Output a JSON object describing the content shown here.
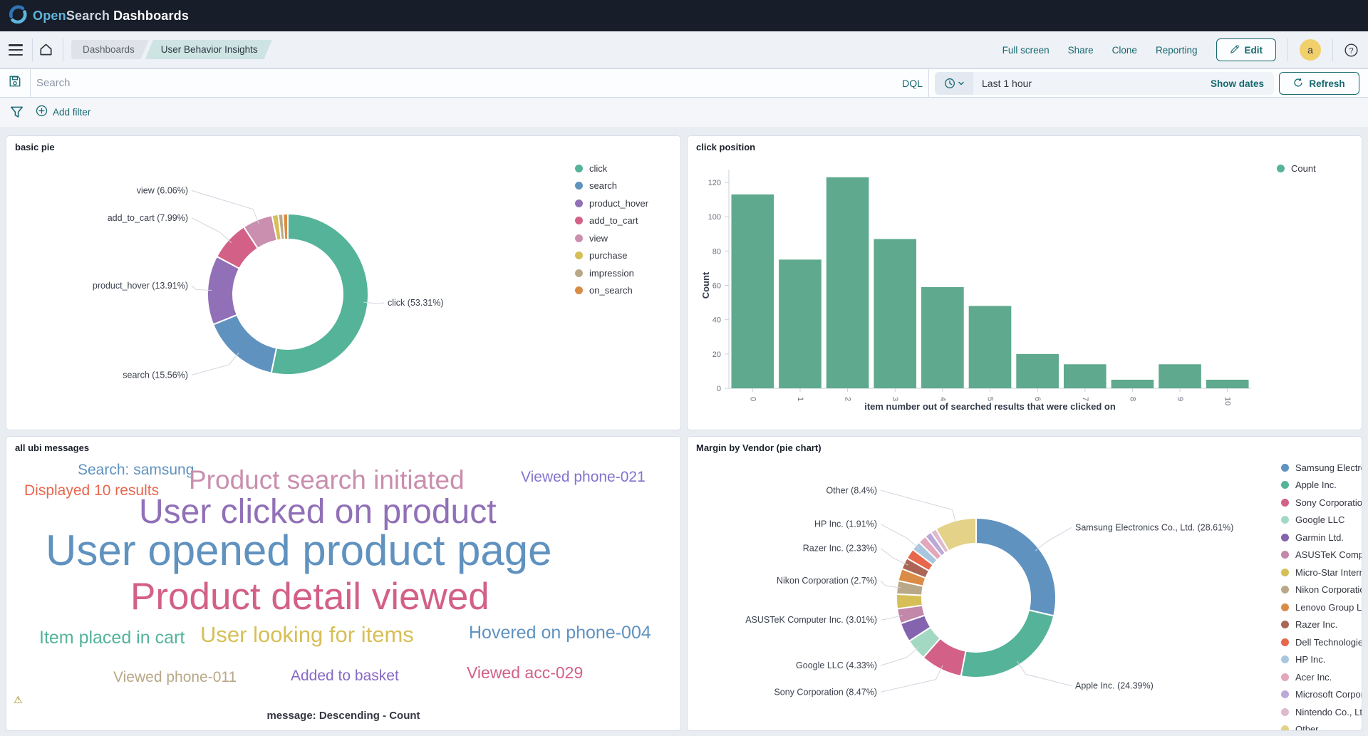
{
  "header": {
    "logo": {
      "open": "Open",
      "search": "Search",
      "dashboards": "Dashboards"
    }
  },
  "nav": {
    "breadcrumbs": [
      "Dashboards",
      "User Behavior Insights"
    ],
    "actions": [
      "Full screen",
      "Share",
      "Clone",
      "Reporting"
    ],
    "edit_label": "Edit",
    "avatar_initial": "a"
  },
  "search_bar": {
    "placeholder": "Search",
    "dql_label": "DQL",
    "time_range": "Last 1 hour",
    "show_dates_label": "Show dates",
    "refresh_label": "Refresh"
  },
  "filter_bar": {
    "add_filter_label": "Add filter"
  },
  "panels": {
    "pie1_title": "basic pie",
    "bar_title": "click position",
    "cloud_title": "all ubi messages",
    "pie2_title": "Margin by Vendor (pie chart)"
  },
  "colors": {
    "accent": "#166870",
    "header_bg": "#171d29",
    "bar_fill": "#5fa98e",
    "page_bg": "#e9edf2"
  },
  "icons": {
    "logo-icon": "opensearch-swirl",
    "menu-icon": "hamburger",
    "home-icon": "house",
    "save-icon": "floppy-disk",
    "filter-icon": "funnel",
    "add-filter-icon": "plus-circle",
    "time-quick-select-icon": "clock-with-caret",
    "refresh-icon": "circular-arrow",
    "edit-icon": "pencil",
    "help-icon": "question-circle",
    "warning-icon": "triangle-exclamation"
  },
  "chart_data": [
    {
      "id": "basic-pie",
      "type": "pie",
      "donut": true,
      "legend_position": "right",
      "slices": [
        {
          "label": "click",
          "value": 53.31,
          "color": "#54B399",
          "callout": "click (53.31%)"
        },
        {
          "label": "search",
          "value": 15.56,
          "color": "#6092C0",
          "callout": "search (15.56%)"
        },
        {
          "label": "product_hover",
          "value": 13.91,
          "color": "#9170B8",
          "callout": "product_hover (13.91%)"
        },
        {
          "label": "add_to_cart",
          "value": 7.99,
          "color": "#D36086",
          "callout": "add_to_cart (7.99%)"
        },
        {
          "label": "view",
          "value": 6.06,
          "color": "#CA8EAE",
          "callout": "view (6.06%)"
        },
        {
          "label": "purchase",
          "value": 1.25,
          "color": "#D6BF57"
        },
        {
          "label": "impression",
          "value": 0.95,
          "color": "#B9A888"
        },
        {
          "label": "on_search",
          "value": 0.97,
          "color": "#DA8B45"
        }
      ]
    },
    {
      "id": "click-position",
      "type": "bar",
      "title": "click position",
      "categories": [
        "0",
        "1",
        "2",
        "3",
        "4",
        "5",
        "6",
        "7",
        "8",
        "9",
        "10"
      ],
      "values": [
        113,
        75,
        123,
        87,
        59,
        48,
        20,
        14,
        5,
        14,
        5
      ],
      "xlabel": "item number out of searched results that were clicked on",
      "ylabel": "Count",
      "yticks": [
        0,
        20,
        40,
        60,
        80,
        100,
        120
      ],
      "ylim": [
        0,
        130
      ],
      "grid": false,
      "legend": [
        {
          "label": "Count",
          "color": "#54B399"
        }
      ],
      "legend_position": "right"
    },
    {
      "id": "ubi-messages",
      "type": "tag_cloud",
      "footer": "message: Descending - Count",
      "has_warning": true,
      "words": [
        {
          "text": "Search: samsung",
          "color": "#6092C0",
          "size": 21,
          "x": 100,
          "y": 36
        },
        {
          "text": "Displayed 10 results",
          "color": "#E7664C",
          "size": 21,
          "x": 25,
          "y": 65
        },
        {
          "text": "Product search initiated",
          "color": "#CA8EAE",
          "size": 37,
          "x": 256,
          "y": 42
        },
        {
          "text": "Viewed phone-021",
          "color": "#8273CD",
          "size": 21,
          "x": 722,
          "y": 46
        },
        {
          "text": "User clicked on product",
          "color": "#9170B8",
          "size": 48,
          "x": 186,
          "y": 82
        },
        {
          "text": "User opened product page",
          "color": "#6092C0",
          "size": 60,
          "x": 55,
          "y": 130
        },
        {
          "text": "Product detail viewed",
          "color": "#D36086",
          "size": 53,
          "x": 174,
          "y": 198
        },
        {
          "text": "Item placed in cart",
          "color": "#54B399",
          "size": 25,
          "x": 46,
          "y": 270
        },
        {
          "text": "User looking for items",
          "color": "#D6BF57",
          "size": 31,
          "x": 272,
          "y": 262
        },
        {
          "text": "Hovered on phone-004",
          "color": "#6092C0",
          "size": 25,
          "x": 649,
          "y": 263
        },
        {
          "text": "Viewed phone-011",
          "color": "#B9A888",
          "size": 21,
          "x": 150,
          "y": 327
        },
        {
          "text": "Added to basket",
          "color": "#8668C6",
          "size": 21,
          "x": 399,
          "y": 325
        },
        {
          "text": "Viewed acc-029",
          "color": "#D36086",
          "size": 23,
          "x": 646,
          "y": 320
        }
      ]
    },
    {
      "id": "margin-by-vendor",
      "type": "pie",
      "donut": true,
      "legend_position": "right",
      "slices": [
        {
          "label": "Samsung Electronics Co., Ltd.",
          "value": 28.61,
          "color": "#6092C0",
          "callout": "Samsung Electronics Co., Ltd. (28.61%)"
        },
        {
          "label": "Apple Inc.",
          "value": 24.39,
          "color": "#54B399",
          "callout": "Apple Inc. (24.39%)"
        },
        {
          "label": "Sony Corporation",
          "value": 8.47,
          "color": "#D36086",
          "callout": "Sony Corporation (8.47%)"
        },
        {
          "label": "Google LLC",
          "value": 4.33,
          "color": "#A3D9C3",
          "callout": "Google LLC (4.33%)"
        },
        {
          "label": "Garmin Ltd.",
          "value": 3.9,
          "color": "#8464AE"
        },
        {
          "label": "ASUSTeK Computer Inc.",
          "value": 3.01,
          "color": "#C287A9",
          "callout": "ASUSTeK Computer Inc. (3.01%)"
        },
        {
          "label": "Micro-Star International",
          "value": 2.95,
          "color": "#D6BF57"
        },
        {
          "label": "Nikon Corporation",
          "value": 2.7,
          "color": "#B9A888",
          "callout": "Nikon Corporation (2.7%)"
        },
        {
          "label": "Lenovo Group Limited",
          "value": 2.5,
          "color": "#DA8B45"
        },
        {
          "label": "Razer Inc.",
          "value": 2.33,
          "color": "#AA6556",
          "callout": "Razer Inc. (2.33%)"
        },
        {
          "label": "Dell Technologies Inc.",
          "value": 2.1,
          "color": "#E7664C"
        },
        {
          "label": "HP Inc.",
          "value": 1.91,
          "color": "#A9C6DF",
          "callout": "HP Inc. (1.91%)"
        },
        {
          "label": "Acer Inc.",
          "value": 1.7,
          "color": "#E4A6BC"
        },
        {
          "label": "Microsoft Corporation",
          "value": 1.4,
          "color": "#BBA9D8"
        },
        {
          "label": "Nintendo Co., Ltd.",
          "value": 1.2,
          "color": "#DDBACD"
        },
        {
          "label": "Other",
          "value": 8.4,
          "color": "#E3D287",
          "callout": "Other (8.4%)"
        }
      ]
    }
  ]
}
